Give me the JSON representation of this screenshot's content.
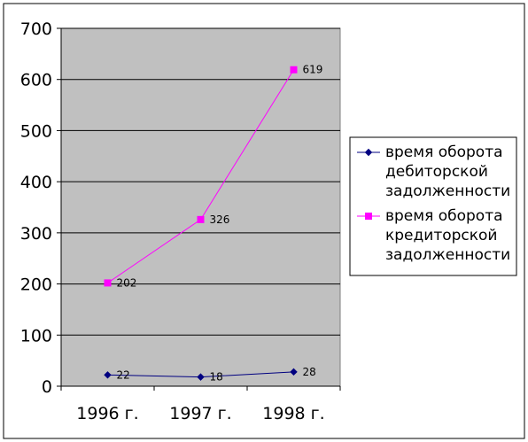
{
  "chart_data": {
    "type": "line",
    "categories": [
      "1996 г.",
      "1997 г.",
      "1998 г."
    ],
    "series": [
      {
        "name_lines": [
          "время оборота",
          "дебиторской",
          "задолженности"
        ],
        "values": [
          22,
          18,
          28
        ],
        "color": "#000080",
        "marker": "diamond"
      },
      {
        "name_lines": [
          "время оборота",
          "кредиторской",
          "задолженности"
        ],
        "values": [
          202,
          326,
          619
        ],
        "color": "#ff00ff",
        "marker": "square"
      }
    ],
    "ylim": [
      0,
      700
    ],
    "yticks": [
      "0",
      "100",
      "200",
      "300",
      "400",
      "500",
      "600",
      "700"
    ],
    "grid": true,
    "plot_background": "#c0c0c0",
    "legend_position": "right"
  }
}
